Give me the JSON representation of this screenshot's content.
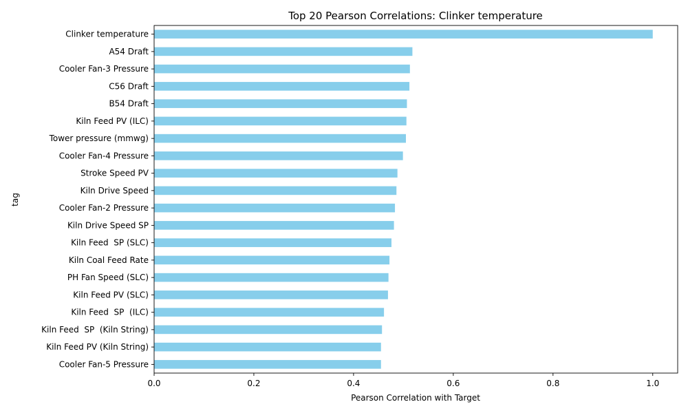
{
  "chart_data": {
    "type": "bar",
    "orientation": "horizontal",
    "title": "Top 20 Pearson Correlations: Clinker temperature",
    "xlabel": "Pearson Correlation with Target",
    "ylabel": "tag",
    "xlim": [
      0,
      1.05
    ],
    "xticks": [
      "0.0",
      "0.2",
      "0.4",
      "0.6",
      "0.8",
      "1.0"
    ],
    "bar_color": "#87ceeb",
    "grid": false,
    "categories": [
      "Clinker temperature",
      "A54 Draft",
      "Cooler Fan-3 Pressure",
      "C56 Draft",
      "B54 Draft",
      "Kiln Feed PV (ILC)",
      "Tower pressure (mmwg)",
      "Cooler Fan-4 Pressure",
      "Stroke Speed PV",
      "Kiln Drive Speed",
      "Cooler Fan-2 Pressure",
      "Kiln Drive Speed SP",
      "Kiln Feed  SP (SLC)",
      "Kiln Coal Feed Rate",
      "PH Fan Speed (SLC)",
      "Kiln Feed PV (SLC)",
      "Kiln Feed  SP  (ILC)",
      "Kiln Feed  SP  (Kiln String)",
      "Kiln Feed PV (Kiln String)",
      "Cooler Fan-5 Pressure"
    ],
    "values": [
      1.0,
      0.518,
      0.513,
      0.512,
      0.507,
      0.506,
      0.505,
      0.499,
      0.488,
      0.486,
      0.483,
      0.481,
      0.476,
      0.472,
      0.47,
      0.469,
      0.461,
      0.457,
      0.455,
      0.455
    ]
  }
}
